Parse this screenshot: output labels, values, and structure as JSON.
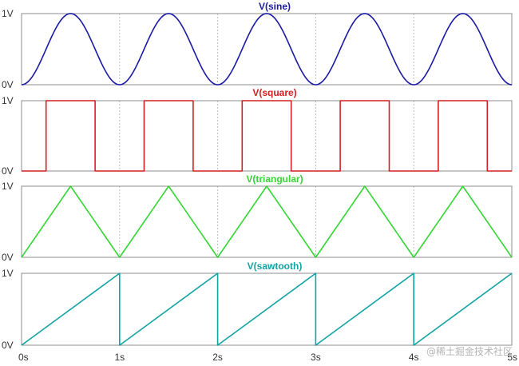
{
  "chart_data": [
    {
      "type": "line",
      "title": "V(sine)",
      "color": "#1a1aa6",
      "waveform": "sine",
      "frequency_hz": 1,
      "amplitude_range": [
        0,
        1
      ],
      "x": [
        0,
        0.25,
        0.5,
        0.75,
        1.0,
        1.25,
        1.5,
        1.75,
        2.0,
        2.25,
        2.5,
        2.75,
        3.0,
        3.25,
        3.5,
        3.75,
        4.0,
        4.25,
        4.5,
        4.75,
        5.0
      ],
      "y": [
        0,
        0.5,
        1,
        0.5,
        0,
        0.5,
        1,
        0.5,
        0,
        0.5,
        1,
        0.5,
        0,
        0.5,
        1,
        0.5,
        0,
        0.5,
        1,
        0.5,
        0
      ],
      "yticks": [
        "0V",
        "1V"
      ],
      "xlim": [
        0,
        5
      ],
      "ylim": [
        0,
        1
      ]
    },
    {
      "type": "line",
      "title": "V(square)",
      "color": "#d42020",
      "waveform": "square",
      "x": [
        0,
        0.25,
        0.25,
        0.75,
        0.75,
        1.25,
        1.25,
        1.75,
        1.75,
        2.25,
        2.25,
        2.75,
        2.75,
        3.25,
        3.25,
        3.75,
        3.75,
        4.25,
        4.25,
        4.75,
        4.75,
        5.0
      ],
      "y": [
        0,
        0,
        1,
        1,
        0,
        0,
        1,
        1,
        0,
        0,
        1,
        1,
        0,
        0,
        1,
        1,
        0,
        0,
        1,
        1,
        0,
        0
      ],
      "yticks": [
        "0V",
        "1V"
      ],
      "xlim": [
        0,
        5
      ],
      "ylim": [
        0,
        1
      ]
    },
    {
      "type": "line",
      "title": "V(triangular)",
      "color": "#33d633",
      "waveform": "triangular",
      "x": [
        0,
        0.5,
        1.0,
        1.5,
        2.0,
        2.5,
        3.0,
        3.5,
        4.0,
        4.5,
        5.0
      ],
      "y": [
        0,
        1,
        0,
        1,
        0,
        1,
        0,
        1,
        0,
        1,
        0
      ],
      "yticks": [
        "0V",
        "1V"
      ],
      "xlim": [
        0,
        5
      ],
      "ylim": [
        0,
        1
      ]
    },
    {
      "type": "line",
      "title": "V(sawtooth)",
      "color": "#12a3a3",
      "waveform": "sawtooth",
      "x": [
        0,
        1.0,
        1.0,
        2.0,
        2.0,
        3.0,
        3.0,
        4.0,
        4.0,
        5.0
      ],
      "y": [
        0,
        1,
        0,
        1,
        0,
        1,
        0,
        1,
        0,
        1
      ],
      "yticks": [
        "0V",
        "1V"
      ],
      "xlim": [
        0,
        5
      ],
      "ylim": [
        0,
        1
      ]
    }
  ],
  "x_axis": {
    "ticks": [
      0,
      1,
      2,
      3,
      4,
      5
    ],
    "tick_labels": [
      "0s",
      "1s",
      "2s",
      "3s",
      "4s",
      "5s"
    ],
    "grid": true
  },
  "watermark": "@稀土掘金技术社区"
}
